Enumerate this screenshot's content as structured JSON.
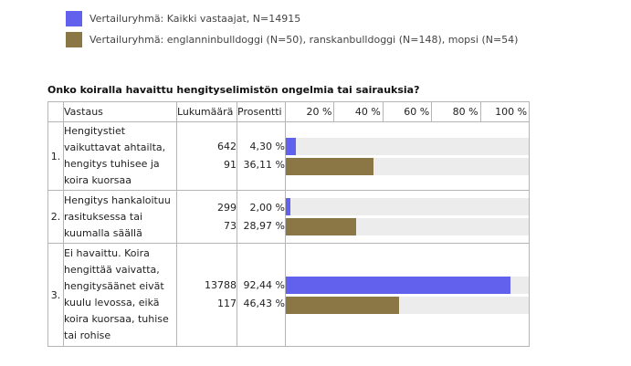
{
  "legend": [
    {
      "label": "Vertailuryhmä: Kaikki vastaajat, N=14915",
      "color": "#6161ee"
    },
    {
      "label": "Vertailuryhmä: englanninbulldoggi (N=50), ranskanbulldoggi (N=148), mopsi (N=54)",
      "color": "#8b7645"
    }
  ],
  "question": "Onko koiralla havaittu hengityselimistön ongelmia tai sairauksia?",
  "table": {
    "headers": {
      "answer": "Vastaus",
      "count": "Lukumäärä",
      "percent": "Prosentti"
    },
    "scale": [
      "20 %",
      "40 %",
      "60 %",
      "80 %",
      "100 %"
    ],
    "rows": [
      {
        "num": "1.",
        "answer": "Hengitystiet vaikuttavat ahtailta, hengitys tuhisee ja koira kuorsaa",
        "series": [
          {
            "count": "642",
            "percent": "4,30 %",
            "value": 4.3
          },
          {
            "count": "91",
            "percent": "36,11 %",
            "value": 36.11
          }
        ]
      },
      {
        "num": "2.",
        "answer": "Hengitys hankaloituu rasituksessa tai kuumalla säällä",
        "series": [
          {
            "count": "299",
            "percent": "2,00 %",
            "value": 2.0
          },
          {
            "count": "73",
            "percent": "28,97 %",
            "value": 28.97
          }
        ]
      },
      {
        "num": "3.",
        "answer": "Ei havaittu. Koira hengittää vaivatta, hengitysäänet eivät kuulu levossa, eikä koira kuorsaa, tuhise tai rohise",
        "series": [
          {
            "count": "13788",
            "percent": "92,44 %",
            "value": 92.44
          },
          {
            "count": "117",
            "percent": "46,43 %",
            "value": 46.43
          }
        ]
      }
    ]
  }
}
